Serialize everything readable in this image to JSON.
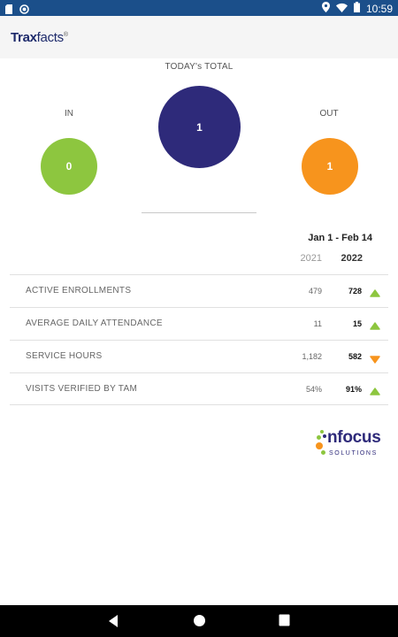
{
  "status_bar": {
    "time": "10:59"
  },
  "app": {
    "logo_bold": "Trax",
    "logo_rest": "facts",
    "logo_mark": "®"
  },
  "totals": {
    "today_label": "TODAY's TOTAL",
    "in_label": "IN",
    "out_label": "OUT",
    "in_value": "0",
    "total_value": "1",
    "out_value": "1",
    "colors": {
      "in": "#8dc63f",
      "total": "#2e2a7a",
      "out": "#f7941d"
    }
  },
  "summary": {
    "date_range": "Jan 1 - Feb 14",
    "year_prev": "2021",
    "year_curr": "2022",
    "rows": [
      {
        "label": "ACTIVE ENROLLMENTS",
        "prev": "479",
        "curr": "728",
        "trend": "up"
      },
      {
        "label": "AVERAGE DAILY ATTENDANCE",
        "prev": "11",
        "curr": "15",
        "trend": "up"
      },
      {
        "label": "SERVICE HOURS",
        "prev": "1,182",
        "curr": "582",
        "trend": "down"
      },
      {
        "label": "VISITS VERIFIED BY TAM",
        "prev": "54%",
        "curr": "91%",
        "trend": "up"
      }
    ],
    "trend_colors": {
      "up": "#8dc63f",
      "down": "#f7941d"
    }
  },
  "branding": {
    "word": "nfocus",
    "sub": "SOLUTIONS"
  }
}
